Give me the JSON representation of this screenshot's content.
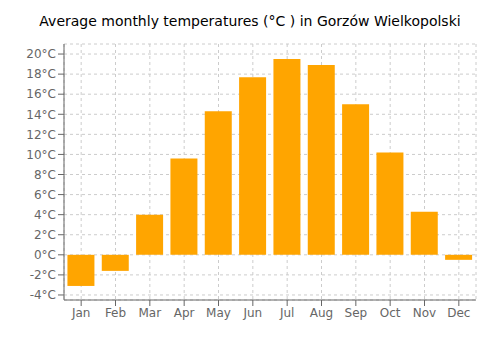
{
  "chart_data": {
    "type": "bar",
    "title": "Average monthly temperatures (°C ) in Gorzów Wielkopolski",
    "categories": [
      "Jan",
      "Feb",
      "Mar",
      "Apr",
      "May",
      "Jun",
      "Jul",
      "Aug",
      "Sep",
      "Oct",
      "Nov",
      "Dec"
    ],
    "values": [
      -3.1,
      -1.6,
      4.0,
      9.6,
      14.3,
      17.7,
      19.5,
      18.9,
      15.0,
      10.2,
      4.3,
      -0.5
    ],
    "color": "#FFA500",
    "ylim": [
      -4.5,
      21
    ],
    "yticks": [
      {
        "value": -4,
        "label": "-4°C"
      },
      {
        "value": -2,
        "label": "-2°C"
      },
      {
        "value": 0,
        "label": "0°C"
      },
      {
        "value": 2,
        "label": "2°C"
      },
      {
        "value": 4,
        "label": "4°C"
      },
      {
        "value": 6,
        "label": "6°C"
      },
      {
        "value": 8,
        "label": "8°C"
      },
      {
        "value": 10,
        "label": "10°C"
      },
      {
        "value": 12,
        "label": "12°C"
      },
      {
        "value": 14,
        "label": "14°C"
      },
      {
        "value": 16,
        "label": "16°C"
      },
      {
        "value": 18,
        "label": "18°C"
      },
      {
        "value": 20,
        "label": "20°C"
      }
    ],
    "grid": true
  }
}
